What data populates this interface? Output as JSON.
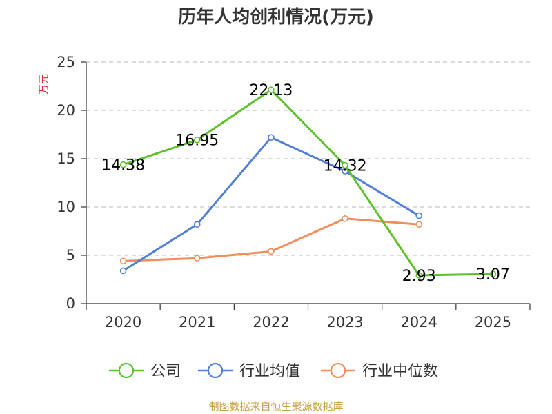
{
  "chart_data": {
    "type": "line",
    "title": "历年人均创利情况(万元)",
    "ylabel": "万元",
    "categories": [
      "2020",
      "2021",
      "2022",
      "2023",
      "2024",
      "2025"
    ],
    "ylim": [
      0,
      25
    ],
    "yticks": [
      "0",
      "5",
      "10",
      "15",
      "20",
      "25"
    ],
    "grid": true,
    "legend_position": "bottom",
    "series": [
      {
        "name": "公司",
        "color": "#5cc22b",
        "values": [
          14.38,
          16.95,
          22.13,
          14.32,
          2.93,
          3.07
        ],
        "labels": [
          "14.38",
          "16.95",
          "22.13",
          "14.32",
          "2.93",
          "3.07"
        ]
      },
      {
        "name": "行业均值",
        "color": "#4f7fd8",
        "values": [
          3.4,
          8.2,
          17.2,
          13.7,
          9.1,
          null
        ]
      },
      {
        "name": "行业中位数",
        "color": "#f38d5c",
        "values": [
          4.4,
          4.7,
          5.4,
          8.8,
          8.2,
          null
        ]
      }
    ]
  },
  "colors": {
    "ylabel": "#e03030",
    "source": "#c8a040"
  },
  "source": "制图数据来自恒生聚源数据库"
}
